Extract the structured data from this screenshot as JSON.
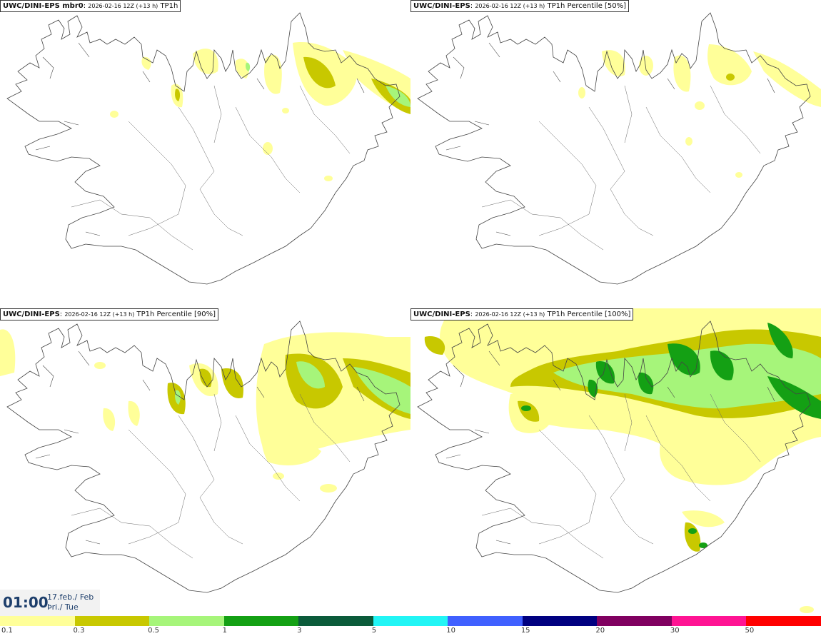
{
  "panels": [
    {
      "model": "UWC/DINI-EPS mbr0",
      "run": "2026-02-16 12Z (+13 h)",
      "field": "TP1h"
    },
    {
      "model": "UWC/DINI-EPS",
      "run": "2026-02-16 12Z (+13 h)",
      "field": "TP1h Percentile [50%]"
    },
    {
      "model": "UWC/DINI-EPS",
      "run": "2026-02-16 12Z (+13 h)",
      "field": "TP1h Percentile [90%]"
    },
    {
      "model": "UWC/DINI-EPS",
      "run": "2026-02-16 12Z (+13 h)",
      "field": "TP1h Percentile [100%]"
    }
  ],
  "valid": {
    "time": "01:00",
    "date": "17.feb./ Feb",
    "weekday": "Þri./ Tue"
  },
  "legend": {
    "colors": [
      "#ffff99",
      "#c8c800",
      "#a6f57a",
      "#14a014",
      "#0b5b3a",
      "#22f5f5",
      "#4060ff",
      "#000080",
      "#800060",
      "#ff1493",
      "#ff0000"
    ],
    "labels": [
      "0.1",
      "0.3",
      "0.5",
      "1",
      "3",
      "5",
      "10",
      "15",
      "20",
      "30",
      "50"
    ]
  },
  "colors": {
    "light": "#ffff99",
    "olive": "#c8c800",
    "lightgreen": "#a6f57a",
    "green": "#14a014"
  }
}
